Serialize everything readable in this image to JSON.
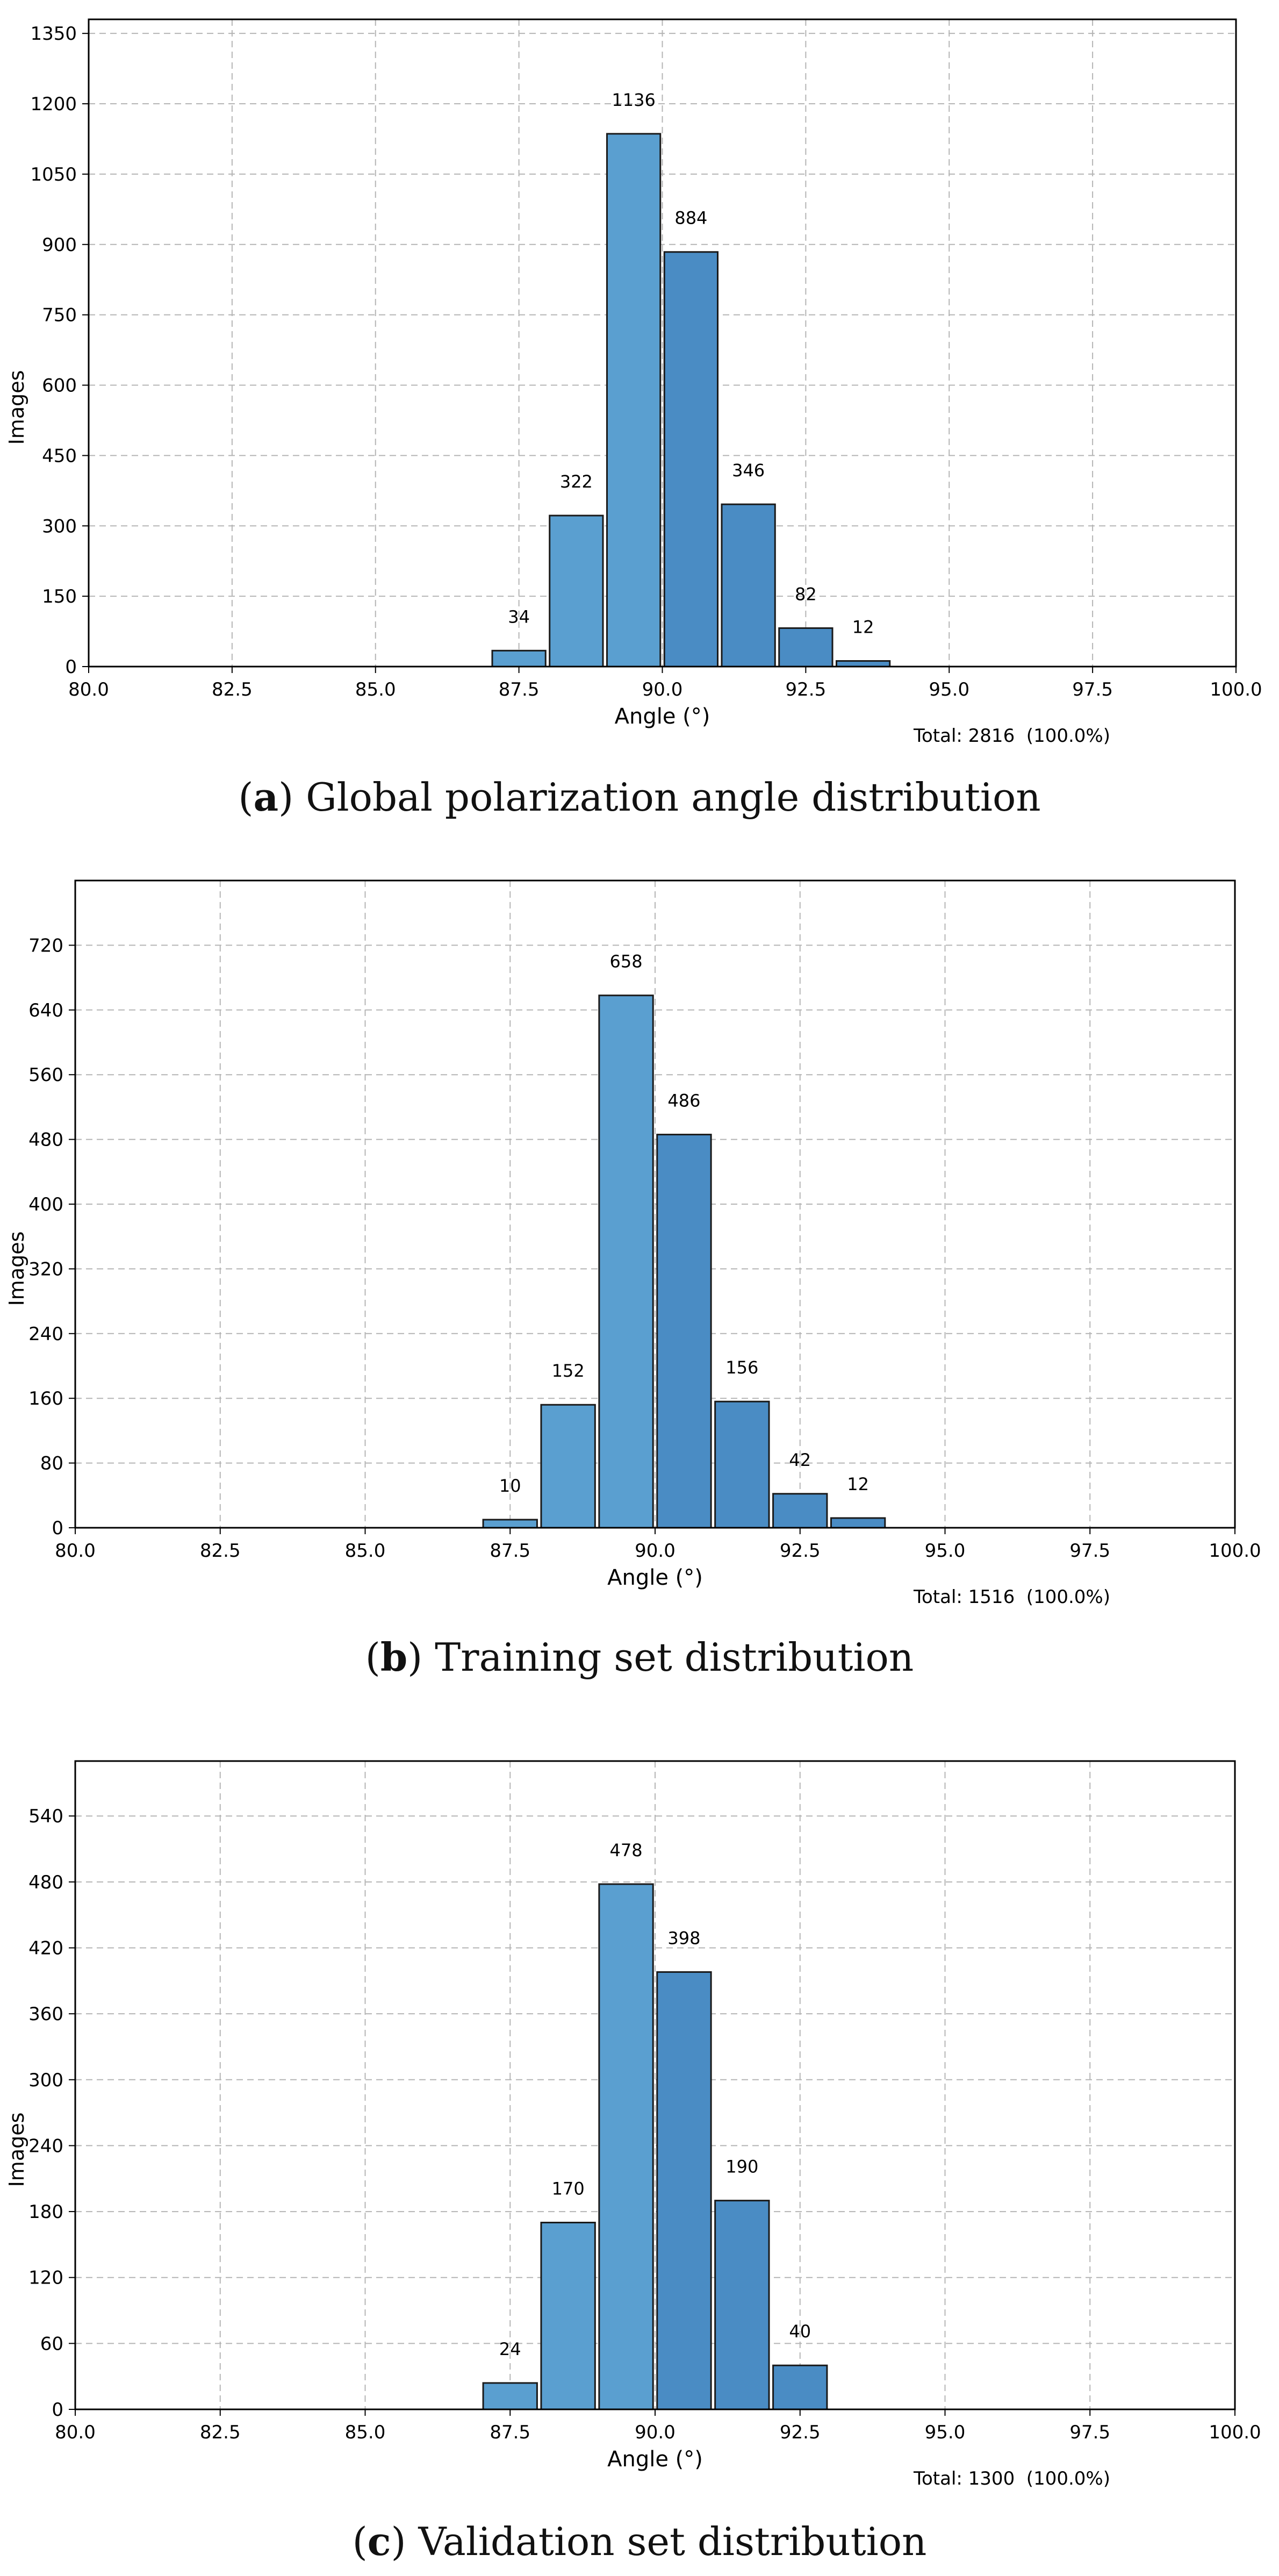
{
  "colors": {
    "bar_light": "#5a9fd0",
    "bar_dark": "#4a8cc4",
    "bar_edge": "#1a1a1a",
    "grid": "#b5b5b5",
    "axis": "#000000"
  },
  "chart_data": [
    {
      "type": "bar",
      "xlabel": "Angle (°)",
      "ylabel": "Images",
      "xlim": [
        80.0,
        100.0
      ],
      "xticks": [
        "80.0",
        "82.5",
        "85.0",
        "87.5",
        "90.0",
        "92.5",
        "95.0",
        "97.5",
        "100.0"
      ],
      "ylim": [
        0,
        1380
      ],
      "yticks": [
        "0",
        "150",
        "300",
        "450",
        "600",
        "750",
        "900",
        "1050",
        "1200",
        "1350"
      ],
      "bin_width": 1.0,
      "bars": [
        {
          "x": 87.5,
          "value": 34,
          "label": "34"
        },
        {
          "x": 88.5,
          "value": 322,
          "label": "322"
        },
        {
          "x": 89.5,
          "value": 1136,
          "label": "1136"
        },
        {
          "x": 90.5,
          "value": 884,
          "label": "884"
        },
        {
          "x": 91.5,
          "value": 346,
          "label": "346"
        },
        {
          "x": 92.5,
          "value": 82,
          "label": "82"
        },
        {
          "x": 93.5,
          "value": 12,
          "label": "12"
        }
      ],
      "grid": true,
      "total_text": "Total: 2816  (100.0%)",
      "caption_tag": "a",
      "caption_text": "Global polarization angle distribution"
    },
    {
      "type": "bar",
      "xlabel": "Angle (°)",
      "ylabel": "Images",
      "xlim": [
        80.0,
        100.0
      ],
      "xticks": [
        "80.0",
        "82.5",
        "85.0",
        "87.5",
        "90.0",
        "92.5",
        "95.0",
        "97.5",
        "100.0"
      ],
      "ylim": [
        0,
        800
      ],
      "yticks": [
        "0",
        "80",
        "160",
        "240",
        "320",
        "400",
        "480",
        "560",
        "640",
        "720"
      ],
      "bin_width": 1.0,
      "bars": [
        {
          "x": 87.5,
          "value": 10,
          "label": "10"
        },
        {
          "x": 88.5,
          "value": 152,
          "label": "152"
        },
        {
          "x": 89.5,
          "value": 658,
          "label": "658"
        },
        {
          "x": 90.5,
          "value": 486,
          "label": "486"
        },
        {
          "x": 91.5,
          "value": 156,
          "label": "156"
        },
        {
          "x": 92.5,
          "value": 42,
          "label": "42"
        },
        {
          "x": 93.5,
          "value": 12,
          "label": "12"
        }
      ],
      "grid": true,
      "total_text": "Total: 1516  (100.0%)",
      "caption_tag": "b",
      "caption_text": "Training set distribution"
    },
    {
      "type": "bar",
      "xlabel": "Angle (°)",
      "ylabel": "Images",
      "xlim": [
        80.0,
        100.0
      ],
      "xticks": [
        "80.0",
        "82.5",
        "85.0",
        "87.5",
        "90.0",
        "92.5",
        "95.0",
        "97.5",
        "100.0"
      ],
      "ylim": [
        0,
        590
      ],
      "yticks": [
        "0",
        "60",
        "120",
        "180",
        "240",
        "300",
        "360",
        "420",
        "480",
        "540"
      ],
      "bin_width": 1.0,
      "bars": [
        {
          "x": 87.5,
          "value": 24,
          "label": "24"
        },
        {
          "x": 88.5,
          "value": 170,
          "label": "170"
        },
        {
          "x": 89.5,
          "value": 478,
          "label": "478"
        },
        {
          "x": 90.5,
          "value": 398,
          "label": "398"
        },
        {
          "x": 91.5,
          "value": 190,
          "label": "190"
        },
        {
          "x": 92.5,
          "value": 40,
          "label": "40"
        }
      ],
      "grid": true,
      "total_text": "Total: 1300  (100.0%)",
      "caption_tag": "c",
      "caption_text": "Validation set distribution"
    }
  ]
}
